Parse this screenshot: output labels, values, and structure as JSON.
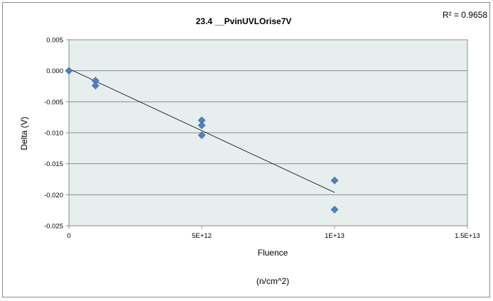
{
  "chart_data": {
    "type": "scatter",
    "title": "23.4 __PvinUVLOrise7V",
    "r_squared_label": "R² = 0.9658",
    "xlabel": "Fluence",
    "xlabel_sub": "(n/cm^2)",
    "ylabel": "Delta (V)",
    "xlim": [
      0,
      15000000000000
    ],
    "ylim": [
      -0.025,
      0.005
    ],
    "x_ticks": [
      {
        "value": 0,
        "label": "0"
      },
      {
        "value": 5000000000000,
        "label": "5E+12"
      },
      {
        "value": 10000000000000,
        "label": "1E+13"
      },
      {
        "value": 15000000000000,
        "label": "1.5E+13"
      }
    ],
    "y_ticks": [
      {
        "value": 0.005,
        "label": "0.005"
      },
      {
        "value": 0.0,
        "label": "0.000"
      },
      {
        "value": -0.005,
        "label": "-0.005"
      },
      {
        "value": -0.01,
        "label": "-0.010"
      },
      {
        "value": -0.015,
        "label": "-0.015"
      },
      {
        "value": -0.02,
        "label": "-0.020"
      },
      {
        "value": -0.025,
        "label": "-0.025"
      }
    ],
    "grid": "horizontal",
    "series": [
      {
        "points": [
          {
            "x": 0,
            "y": 0.0
          },
          {
            "x": 1000000000000,
            "y": -0.0016
          },
          {
            "x": 1000000000000,
            "y": -0.0024
          },
          {
            "x": 5000000000000,
            "y": -0.008
          },
          {
            "x": 5000000000000,
            "y": -0.0088
          },
          {
            "x": 5000000000000,
            "y": -0.0104
          },
          {
            "x": 10000000000000,
            "y": -0.0177
          },
          {
            "x": 10000000000000,
            "y": -0.0224
          }
        ],
        "color": "#4f81bd"
      }
    ],
    "trendline": {
      "type": "linear",
      "x_range": [
        0,
        10000000000000
      ],
      "color": "#000000"
    },
    "plot_background": "#e6eeee",
    "gridline_color": "#8c8c8c"
  }
}
